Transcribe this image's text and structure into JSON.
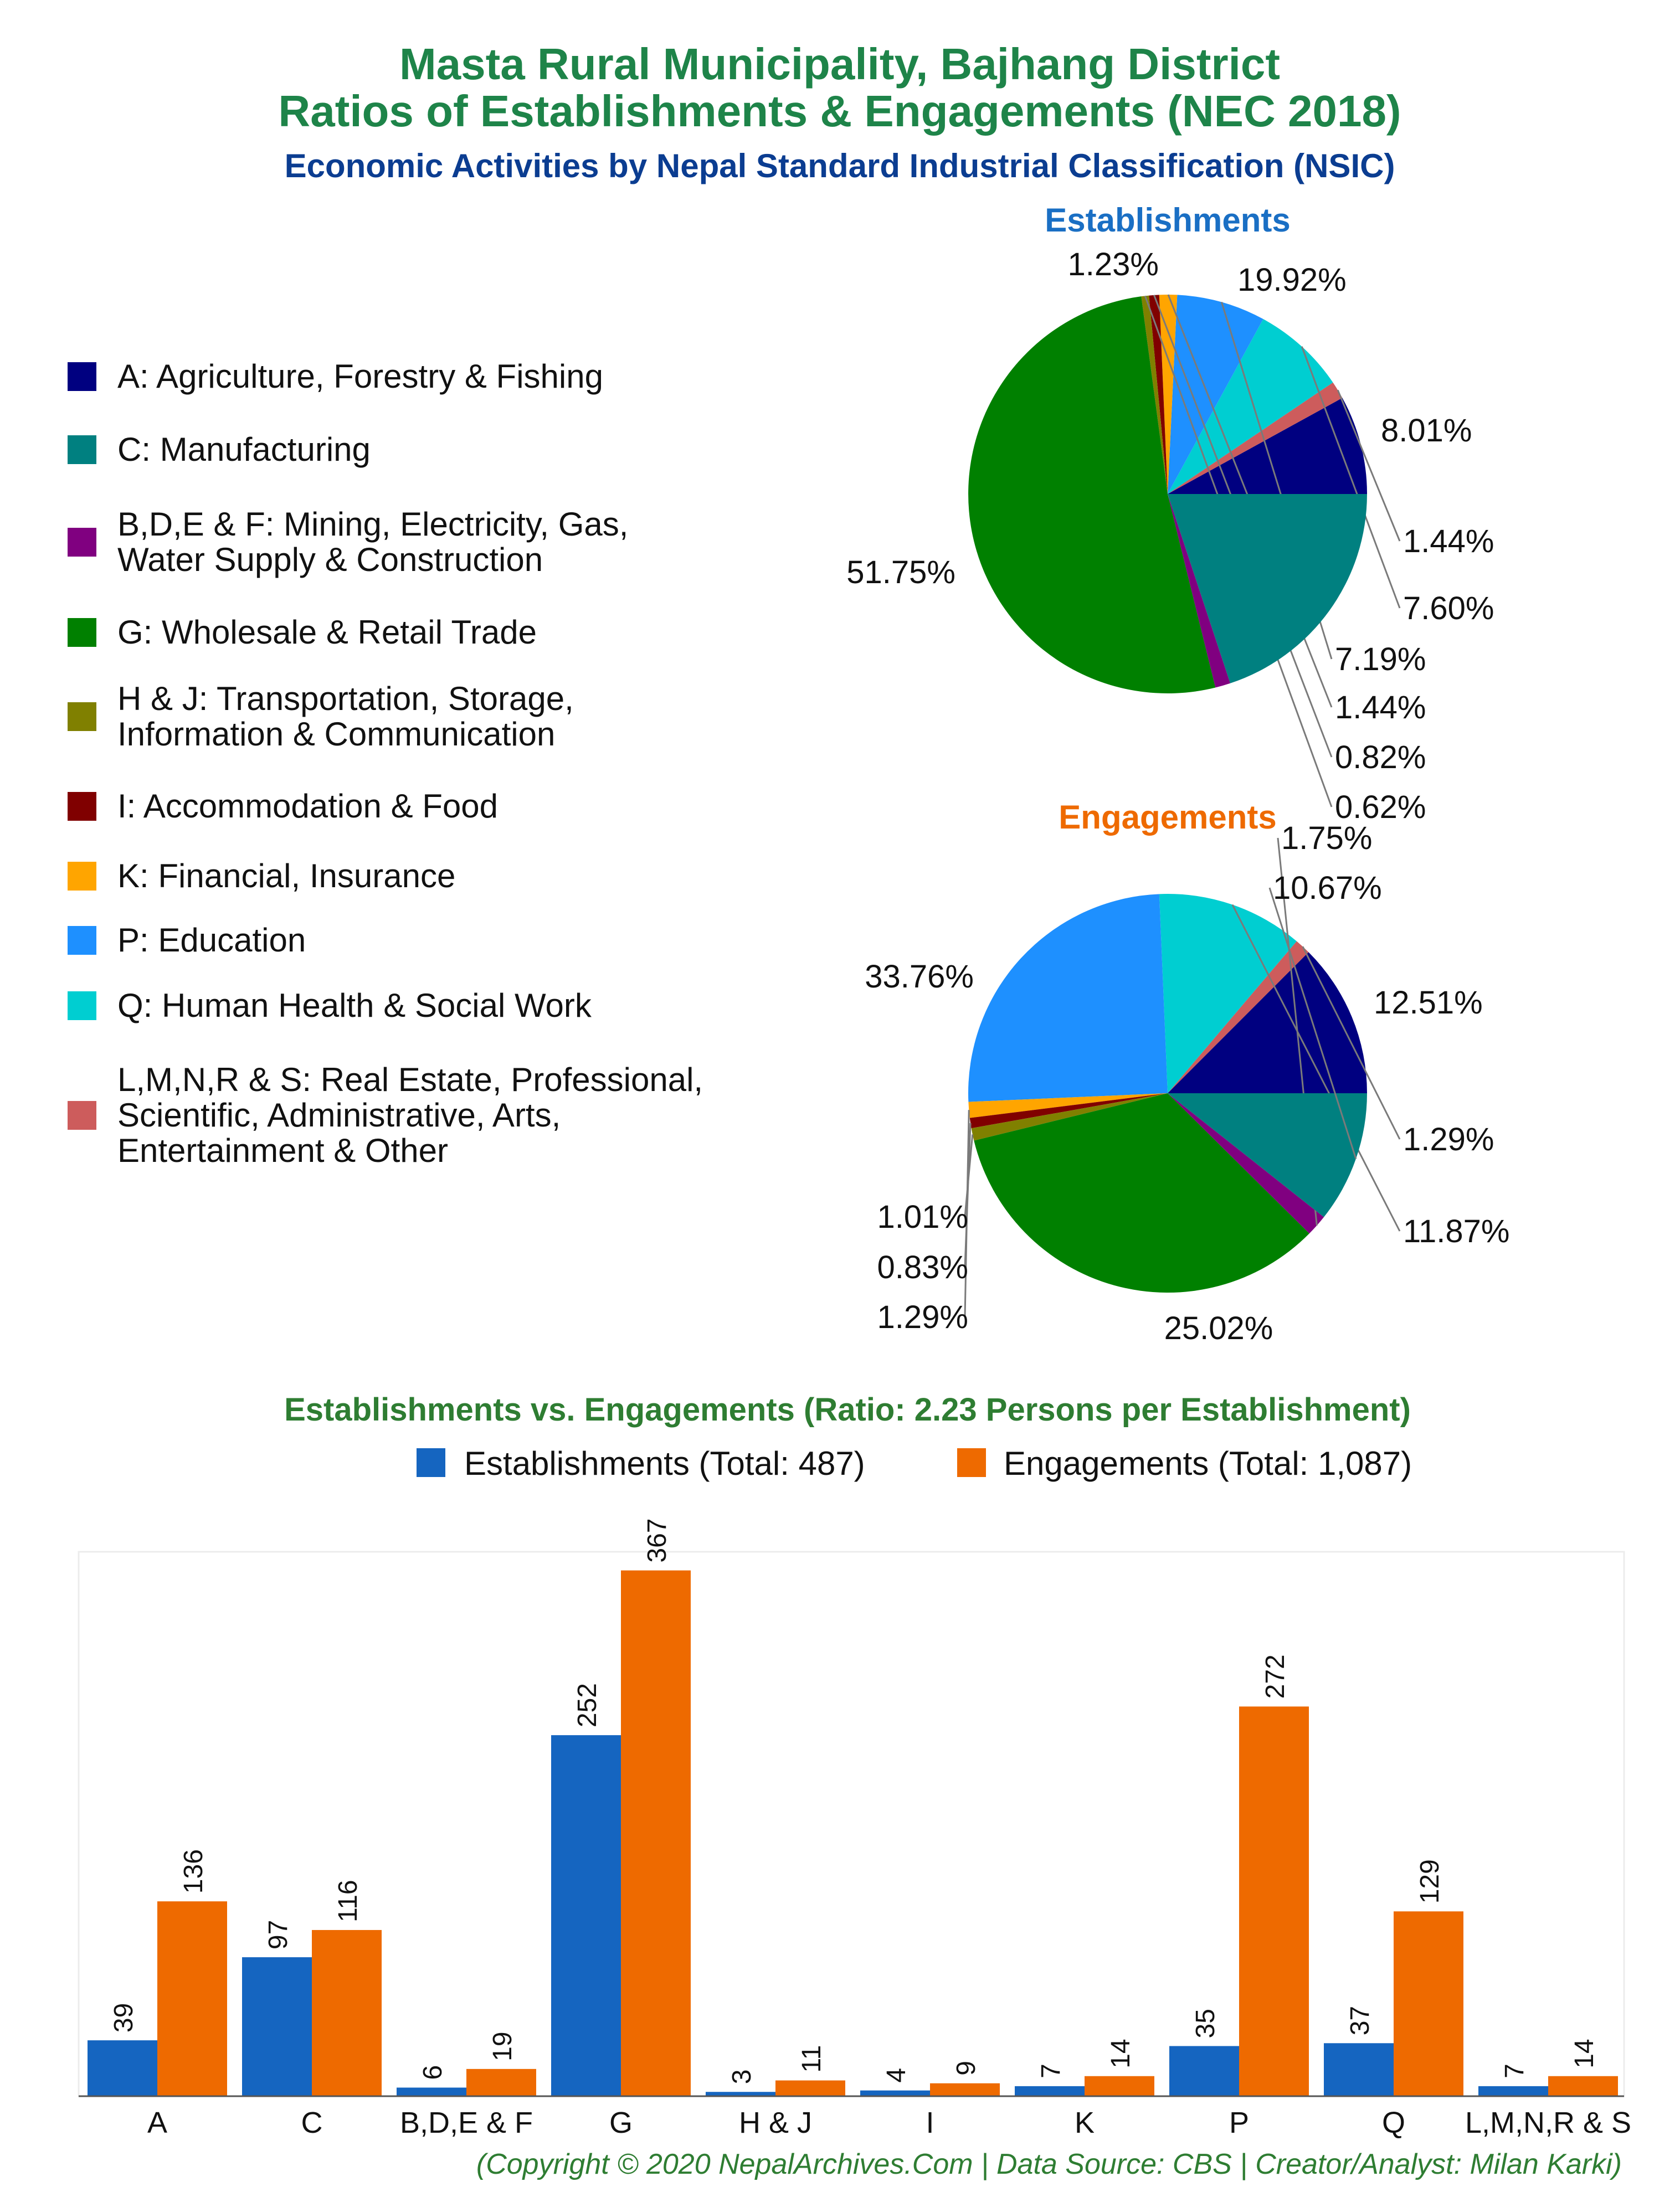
{
  "header": {
    "title_line1": "Masta Rural Municipality, Bajhang District",
    "title_line2": "Ratios of Establishments & Engagements (NEC 2018)",
    "subtitle": "Economic Activities by Nepal Standard Industrial Classification (NSIC)"
  },
  "legend": {
    "items": [
      {
        "lines": [
          "A: Agriculture, Forestry & Fishing"
        ],
        "color": "#000080"
      },
      {
        "lines": [
          "C: Manufacturing"
        ],
        "color": "#008080"
      },
      {
        "lines": [
          "B,D,E & F: Mining, Electricity, Gas,",
          "Water Supply & Construction"
        ],
        "color": "#800080"
      },
      {
        "lines": [
          "G: Wholesale & Retail Trade"
        ],
        "color": "#008000"
      },
      {
        "lines": [
          "H & J: Transportation, Storage,",
          "Information & Communication"
        ],
        "color": "#808000"
      },
      {
        "lines": [
          "I: Accommodation & Food"
        ],
        "color": "#800000"
      },
      {
        "lines": [
          "K: Financial, Insurance"
        ],
        "color": "#FFA500"
      },
      {
        "lines": [
          "P: Education"
        ],
        "color": "#1E90FF"
      },
      {
        "lines": [
          "Q: Human Health & Social Work"
        ],
        "color": "#00CED1"
      },
      {
        "lines": [
          "L,M,N,R & S: Real Estate, Professional,",
          "Scientific, Administrative, Arts,",
          "Entertainment & Other"
        ],
        "color": "#CD5C5C"
      }
    ]
  },
  "bar_chart": {
    "title": "Establishments vs. Engagements (Ratio: 2.23 Persons per Establishment)",
    "legend_establishments": "Establishments (Total: 487)",
    "legend_engagements": "Engagements (Total: 1,087)"
  },
  "footer": {
    "credit": "(Copyright © 2020 NepalArchives.Com | Data Source: CBS | Creator/Analyst: Milan Karki)"
  },
  "colors": {
    "title_green": "#1E8449",
    "subtitle_navy": "#0B3D91",
    "establishments_blue": "#1565C0",
    "engagements_orange": "#EE6A00",
    "pie_title_est": "#1A6FC4",
    "pie_title_eng": "#EE6A00",
    "bar_title_green": "#2E7D32"
  },
  "chart_data": [
    {
      "type": "pie",
      "title": "Establishments",
      "categories": [
        "A",
        "L,M,N,R & S",
        "Q",
        "P",
        "K",
        "I",
        "H & J",
        "G",
        "B,D,E & F",
        "C"
      ],
      "values": [
        8.01,
        1.44,
        7.6,
        7.19,
        1.44,
        0.82,
        0.62,
        51.75,
        1.23,
        19.92
      ],
      "labels": [
        "8.01%",
        "1.44%",
        "7.60%",
        "7.19%",
        "1.44%",
        "0.82%",
        "0.62%",
        "51.75%",
        "1.23%",
        "19.92%"
      ],
      "colors": [
        "#000080",
        "#CD5C5C",
        "#00CED1",
        "#1E90FF",
        "#FFA500",
        "#800000",
        "#808000",
        "#008000",
        "#800080",
        "#008080"
      ]
    },
    {
      "type": "pie",
      "title": "Engagements",
      "categories": [
        "A",
        "L,M,N,R & S",
        "Q",
        "P",
        "K",
        "I",
        "H & J",
        "G",
        "B,D,E & F",
        "C"
      ],
      "values": [
        12.51,
        1.29,
        11.87,
        25.02,
        1.29,
        0.83,
        1.01,
        33.76,
        1.75,
        10.67
      ],
      "labels": [
        "12.51%",
        "1.29%",
        "11.87%",
        "25.02%",
        "1.29%",
        "0.83%",
        "1.01%",
        "33.76%",
        "1.75%",
        "10.67%"
      ],
      "colors": [
        "#000080",
        "#CD5C5C",
        "#00CED1",
        "#1E90FF",
        "#FFA500",
        "#800000",
        "#808000",
        "#008000",
        "#800080",
        "#008080"
      ]
    },
    {
      "type": "bar",
      "title": "Establishments vs. Engagements (Ratio: 2.23 Persons per Establishment)",
      "categories": [
        "A",
        "C",
        "B,D,E & F",
        "G",
        "H & J",
        "I",
        "K",
        "P",
        "Q",
        "L,M,N,R & S"
      ],
      "series": [
        {
          "name": "Establishments (Total: 487)",
          "values": [
            39,
            97,
            6,
            252,
            3,
            4,
            7,
            35,
            37,
            7
          ]
        },
        {
          "name": "Engagements (Total: 1,087)",
          "values": [
            136,
            116,
            19,
            367,
            11,
            9,
            14,
            272,
            129,
            14
          ]
        }
      ],
      "ylim": [
        0,
        380
      ],
      "grid": false
    }
  ]
}
